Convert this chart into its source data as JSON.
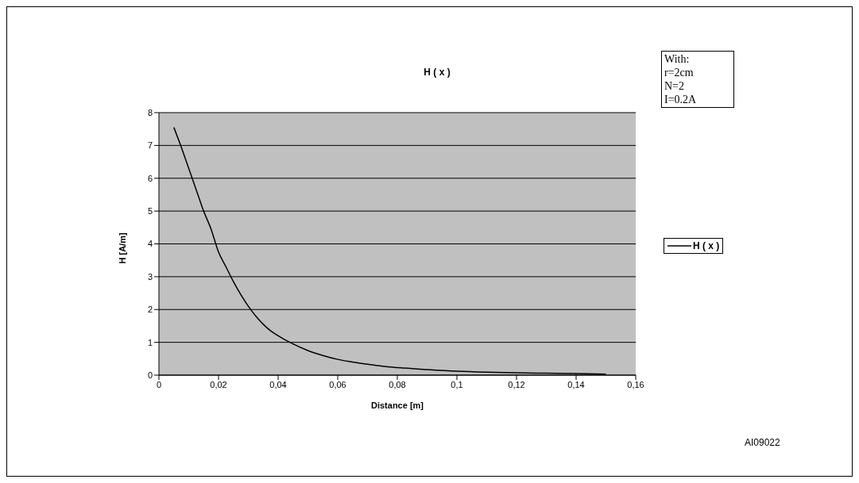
{
  "chart_data": {
    "type": "line",
    "title": "H ( x )",
    "xlabel": "Distance [m]",
    "ylabel": "H [A/m]",
    "series": [
      {
        "name": "H ( x )",
        "color": "#000000",
        "x": [
          0.005,
          0.0075,
          0.01,
          0.0125,
          0.015,
          0.0175,
          0.02,
          0.0225,
          0.025,
          0.0275,
          0.03,
          0.0325,
          0.035,
          0.0375,
          0.04,
          0.045,
          0.05,
          0.055,
          0.06,
          0.065,
          0.07,
          0.075,
          0.08,
          0.09,
          0.1,
          0.11,
          0.12,
          0.13,
          0.14,
          0.15
        ],
        "values": [
          7.55,
          6.95,
          6.3,
          5.65,
          5.0,
          4.45,
          3.75,
          3.3,
          2.85,
          2.45,
          2.1,
          1.8,
          1.55,
          1.35,
          1.2,
          0.95,
          0.75,
          0.6,
          0.48,
          0.4,
          0.33,
          0.27,
          0.23,
          0.17,
          0.12,
          0.09,
          0.07,
          0.06,
          0.05,
          0.03
        ]
      }
    ],
    "xlim": [
      0,
      0.16
    ],
    "xticks": [
      {
        "value": 0,
        "label": "0"
      },
      {
        "value": 0.02,
        "label": "0,02"
      },
      {
        "value": 0.04,
        "label": "0,04"
      },
      {
        "value": 0.06,
        "label": "0,06"
      },
      {
        "value": 0.08,
        "label": "0,08"
      },
      {
        "value": 0.1,
        "label": "0,1"
      },
      {
        "value": 0.12,
        "label": "0,12"
      },
      {
        "value": 0.14,
        "label": "0,14"
      },
      {
        "value": 0.16,
        "label": "0,16"
      }
    ],
    "ylim": [
      0,
      8
    ],
    "yticks": [
      0,
      1,
      2,
      3,
      4,
      5,
      6,
      7,
      8
    ],
    "grid": "y",
    "legend": "right",
    "marker": "none",
    "line_style": "solid",
    "annotations": [
      "With:",
      "r=2cm",
      "N=2",
      "I=0.2A",
      "AI09022"
    ]
  }
}
